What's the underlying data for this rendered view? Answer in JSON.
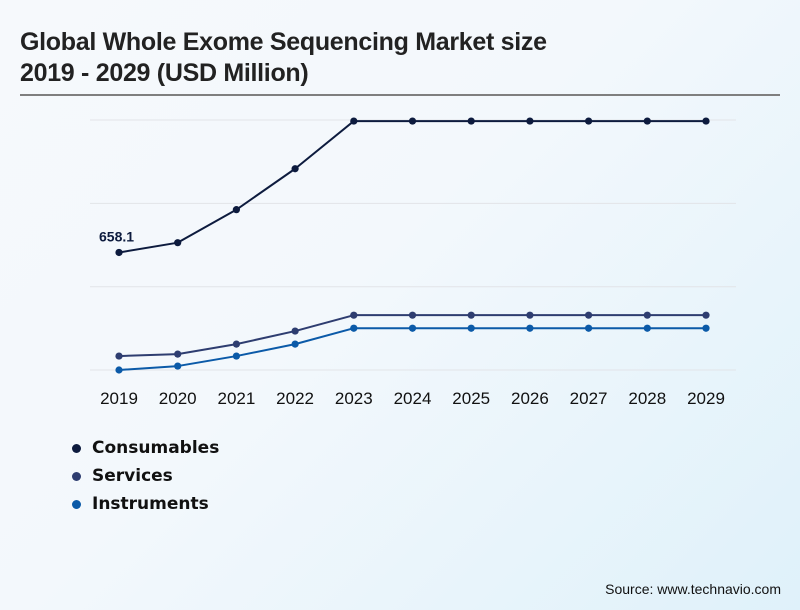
{
  "header": {
    "title_line1": "Global Whole Exome Sequencing Market size",
    "title_line2": "2019 - 2029 (USD Million)"
  },
  "source": "Source: www.technavio.com",
  "chart_data": {
    "type": "line",
    "title": "Global Whole Exome Sequencing Market size 2019 - 2029 (USD Million)",
    "xlabel": "",
    "ylabel": "USD Million",
    "x": [
      "2019",
      "2020",
      "2021",
      "2022",
      "2023",
      "2024",
      "2025",
      "2026",
      "2027",
      "2028",
      "2029"
    ],
    "ylim": [
      0,
      1400
    ],
    "gridlines": [
      0,
      466,
      933,
      1400
    ],
    "grid": true,
    "legend_position": "bottom-left",
    "values_estimated": true,
    "series": [
      {
        "name": "Consumables",
        "color": "#0d1b3e",
        "values": [
          658.1,
          713,
          898,
          1127,
          1394,
          1394,
          1394,
          1394,
          1394,
          1394,
          1394
        ]
      },
      {
        "name": "Services",
        "color": "#2e3d70",
        "values": [
          78,
          89,
          145,
          218,
          307,
          307,
          307,
          307,
          307,
          307,
          307
        ]
      },
      {
        "name": "Instruments",
        "color": "#0b5aa8",
        "values": [
          0,
          22,
          78,
          145,
          234,
          234,
          234,
          234,
          234,
          234,
          234
        ]
      }
    ],
    "annotations": [
      {
        "series": "Consumables",
        "x": "2019",
        "text": "658.1"
      }
    ]
  }
}
